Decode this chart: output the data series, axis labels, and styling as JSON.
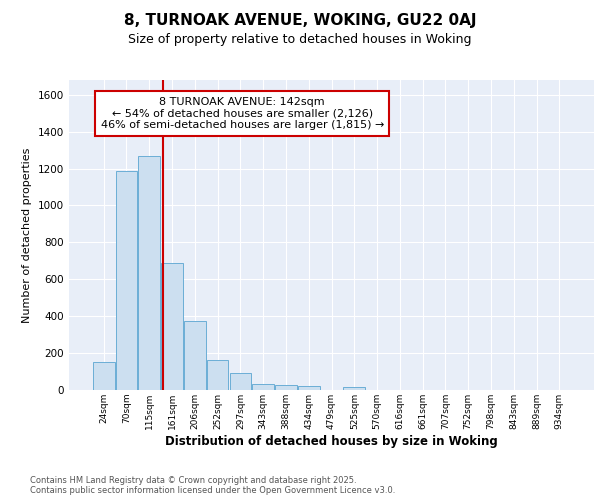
{
  "title1": "8, TURNOAK AVENUE, WOKING, GU22 0AJ",
  "title2": "Size of property relative to detached houses in Woking",
  "xlabel": "Distribution of detached houses by size in Woking",
  "ylabel": "Number of detached properties",
  "categories": [
    "24sqm",
    "70sqm",
    "115sqm",
    "161sqm",
    "206sqm",
    "252sqm",
    "297sqm",
    "343sqm",
    "388sqm",
    "434sqm",
    "479sqm",
    "525sqm",
    "570sqm",
    "616sqm",
    "661sqm",
    "707sqm",
    "752sqm",
    "798sqm",
    "843sqm",
    "889sqm",
    "934sqm"
  ],
  "values": [
    150,
    1185,
    1270,
    690,
    375,
    160,
    90,
    30,
    25,
    20,
    0,
    15,
    0,
    0,
    0,
    0,
    0,
    0,
    0,
    0,
    0
  ],
  "bar_color": "#ccdff0",
  "bar_edge_color": "#6baed6",
  "background_color": "#e8eef8",
  "grid_color": "#ffffff",
  "vline_color": "#cc0000",
  "annotation_text": "8 TURNOAK AVENUE: 142sqm\n← 54% of detached houses are smaller (2,126)\n46% of semi-detached houses are larger (1,815) →",
  "annotation_box_color": "#cc0000",
  "footer_text": "Contains HM Land Registry data © Crown copyright and database right 2025.\nContains public sector information licensed under the Open Government Licence v3.0.",
  "ylim": [
    0,
    1680
  ],
  "yticks": [
    0,
    200,
    400,
    600,
    800,
    1000,
    1200,
    1400,
    1600
  ],
  "title1_fontsize": 11,
  "title2_fontsize": 9
}
